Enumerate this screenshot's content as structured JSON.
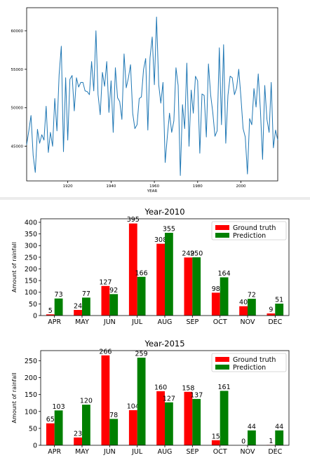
{
  "chart_data": [
    {
      "type": "line",
      "title": "",
      "xlabel": "YEAR",
      "ylabel": "",
      "xlim": [
        1901,
        2017
      ],
      "ylim": [
        40500,
        63000
      ],
      "x_ticks": [
        1920,
        1940,
        1960,
        1980,
        2000
      ],
      "y_ticks": [
        45000,
        50000,
        55000,
        60000
      ],
      "grid": false,
      "series": [
        {
          "color": "#1f77b4",
          "x": [
            1901,
            1902,
            1903,
            1904,
            1905,
            1906,
            1907,
            1908,
            1909,
            1910,
            1911,
            1912,
            1913,
            1914,
            1915,
            1916,
            1917,
            1918,
            1919,
            1920,
            1921,
            1922,
            1923,
            1924,
            1925,
            1926,
            1927,
            1928,
            1929,
            1930,
            1931,
            1932,
            1933,
            1934,
            1935,
            1936,
            1937,
            1938,
            1939,
            1940,
            1941,
            1942,
            1943,
            1944,
            1945,
            1946,
            1947,
            1948,
            1949,
            1950,
            1951,
            1952,
            1953,
            1954,
            1955,
            1956,
            1957,
            1958,
            1959,
            1960,
            1961,
            1962,
            1963,
            1964,
            1965,
            1966,
            1967,
            1968,
            1969,
            1970,
            1971,
            1972,
            1973,
            1974,
            1975,
            1976,
            1977,
            1978,
            1979,
            1980,
            1981,
            1982,
            1983,
            1984,
            1985,
            1986,
            1987,
            1988,
            1989,
            1990,
            1991,
            1992,
            1993,
            1994,
            1995,
            1996,
            1997,
            1998,
            1999,
            2000,
            2001,
            2002,
            2003,
            2004,
            2005,
            2006,
            2007,
            2008,
            2009,
            2010,
            2011,
            2012,
            2013,
            2014,
            2015,
            2016,
            2017
          ],
          "y": [
            45200,
            47000,
            49000,
            43800,
            41600,
            47200,
            45400,
            46500,
            45800,
            50200,
            44200,
            46800,
            45000,
            51200,
            47000,
            54300,
            58000,
            44300,
            53900,
            45800,
            53700,
            54200,
            49600,
            53900,
            52700,
            53300,
            53300,
            52200,
            52100,
            51700,
            56000,
            52200,
            60000,
            51700,
            49100,
            54600,
            52800,
            56000,
            49400,
            53500,
            46800,
            55200,
            51300,
            50800,
            48500,
            57000,
            52600,
            53900,
            55600,
            49300,
            47300,
            47800,
            51200,
            51400,
            55000,
            56400,
            47100,
            56500,
            59200,
            53000,
            61800,
            53000,
            50600,
            53300,
            42900,
            46300,
            49300,
            46800,
            48300,
            55200,
            52900,
            41200,
            50400,
            47300,
            55800,
            45000,
            52300,
            49300,
            54100,
            53500,
            44100,
            51800,
            51600,
            46200,
            55700,
            51700,
            49400,
            46300,
            47000,
            57800,
            47800,
            58200,
            45400,
            51600,
            54100,
            53900,
            51700,
            52600,
            55000,
            51400,
            47300,
            46200,
            41400,
            48600,
            47800,
            52500,
            50100,
            54400,
            49700,
            43300,
            52900,
            48500,
            46800,
            53300,
            44800,
            47100,
            45800
          ]
        }
      ]
    },
    {
      "type": "bar",
      "title": "Year-2010",
      "xlabel": "",
      "ylabel": "Amount of rainfall",
      "ylim": [
        0,
        415
      ],
      "y_ticks": [
        0,
        50,
        100,
        150,
        200,
        250,
        300,
        350,
        400
      ],
      "categories": [
        "APR",
        "MAY",
        "JUN",
        "JUL",
        "AUG",
        "SEP",
        "OCT",
        "NOV",
        "DEC"
      ],
      "legend_position": "top-right",
      "series": [
        {
          "name": "Ground truth",
          "color": "#ff0000",
          "values": [
            5,
            24,
            127,
            395,
            308,
            249,
            98,
            40,
            9
          ]
        },
        {
          "name": "Prediction",
          "color": "#008000",
          "values": [
            73,
            77,
            92,
            166,
            355,
            250,
            164,
            72,
            51
          ]
        }
      ]
    },
    {
      "type": "bar",
      "title": "Year-2015",
      "xlabel": "",
      "ylabel": "Amount of rainfall",
      "ylim": [
        0,
        280
      ],
      "y_ticks": [
        0,
        50,
        100,
        150,
        200,
        250
      ],
      "categories": [
        "APR",
        "MAY",
        "JUN",
        "JUL",
        "AUG",
        "SEP",
        "OCT",
        "NOV",
        "DEC"
      ],
      "legend_position": "top-right",
      "series": [
        {
          "name": "Ground truth",
          "color": "#ff0000",
          "values": [
            65,
            23,
            266,
            104,
            160,
            158,
            15,
            0,
            1
          ]
        },
        {
          "name": "Prediction",
          "color": "#008000",
          "values": [
            103,
            120,
            78,
            259,
            127,
            137,
            161,
            44,
            44
          ]
        }
      ]
    }
  ]
}
